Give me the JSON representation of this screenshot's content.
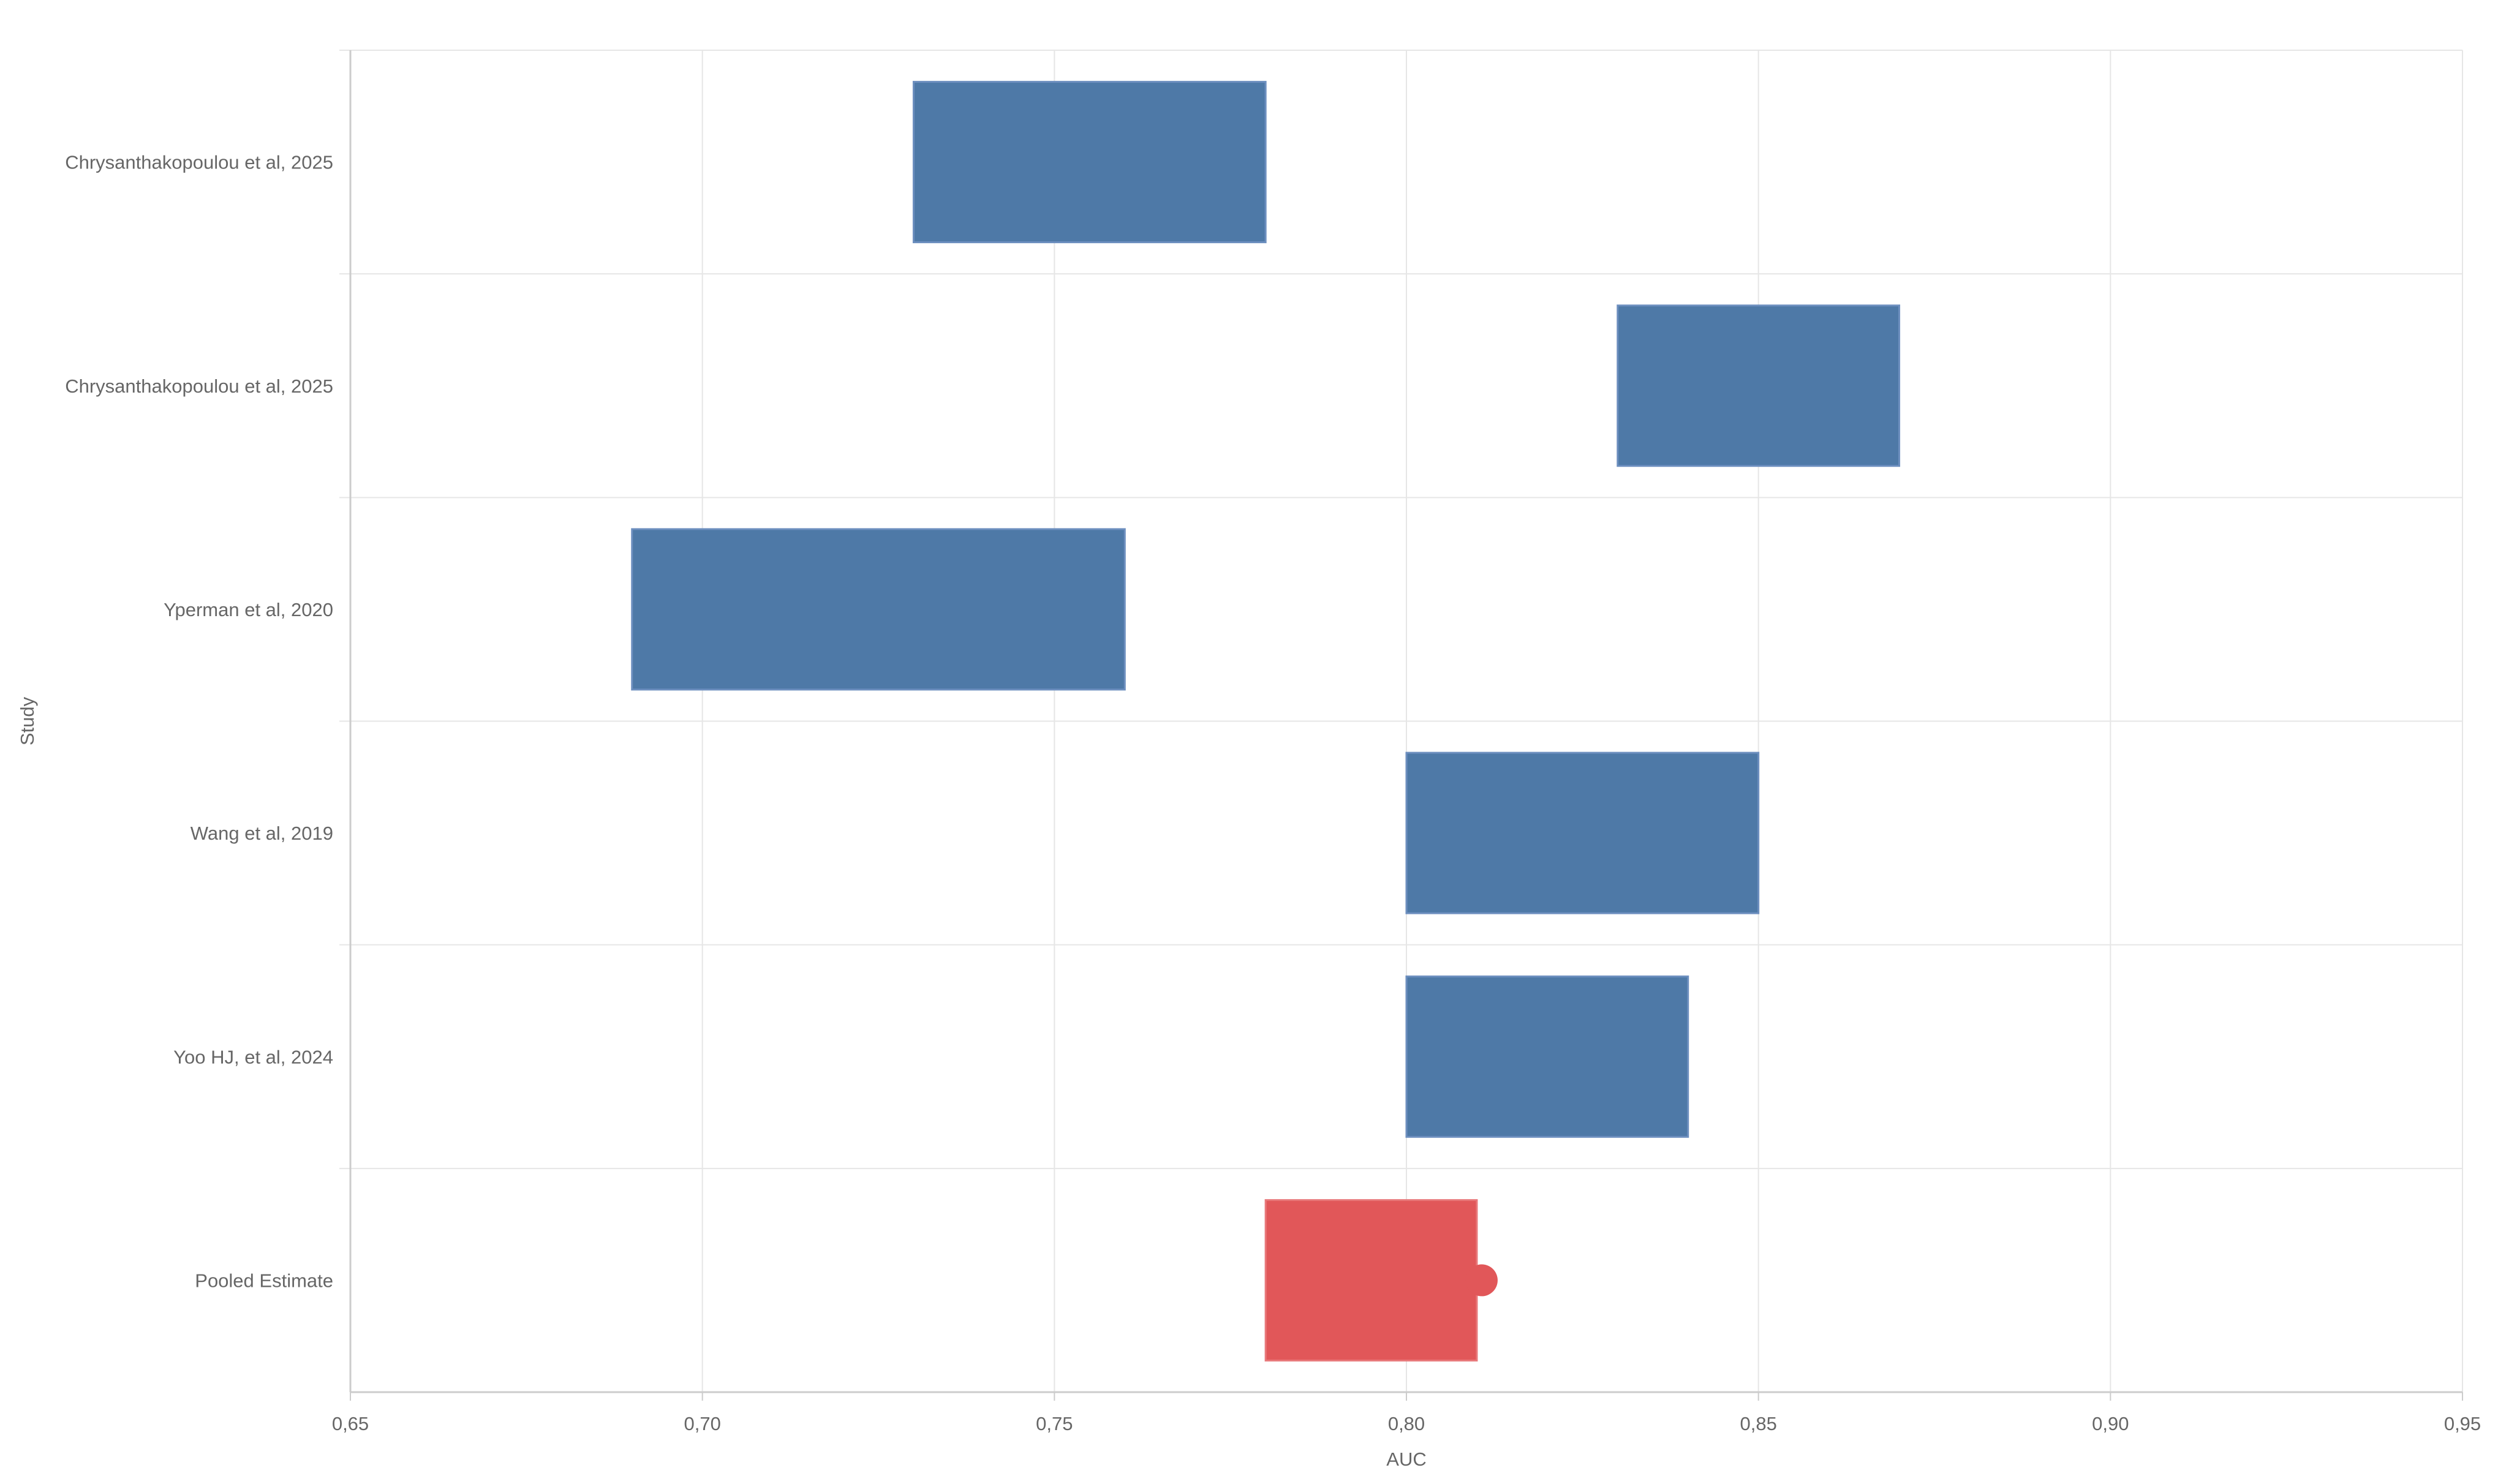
{
  "chart_data": {
    "type": "bar",
    "orientation": "horizontal-floating",
    "title": "",
    "xlabel": "AUC",
    "ylabel": "Study",
    "xlim": [
      0.65,
      0.95
    ],
    "x_ticks": [
      0.65,
      0.7,
      0.75,
      0.8,
      0.85,
      0.9,
      0.95
    ],
    "x_tick_labels": [
      "0,65",
      "0,70",
      "0,75",
      "0,80",
      "0,85",
      "0,90",
      "0,95"
    ],
    "grid": true,
    "legend": "none",
    "categories": [
      "Chrysanthakopoulou et al, 2025",
      "Chrysanthakopoulou et al, 2025",
      "Yperman et al, 2020",
      "Wang et al, 2019",
      "Yoo HJ, et al, 2024",
      "Pooled Estimate"
    ],
    "intervals": [
      {
        "low": 0.73,
        "high": 0.78
      },
      {
        "low": 0.83,
        "high": 0.87
      },
      {
        "low": 0.69,
        "high": 0.76
      },
      {
        "low": 0.8,
        "high": 0.85
      },
      {
        "low": 0.8,
        "high": 0.84
      },
      {
        "low": 0.78,
        "high": 0.81
      }
    ],
    "pooled_point": 0.81,
    "colors": {
      "study": "#4e79a7",
      "study_edge": "#6d8fbf",
      "pooled": "#e15759",
      "pooled_edge": "#e8787a",
      "grid": "#e6e6e6",
      "axis": "#cccccc",
      "text": "#666666"
    }
  }
}
